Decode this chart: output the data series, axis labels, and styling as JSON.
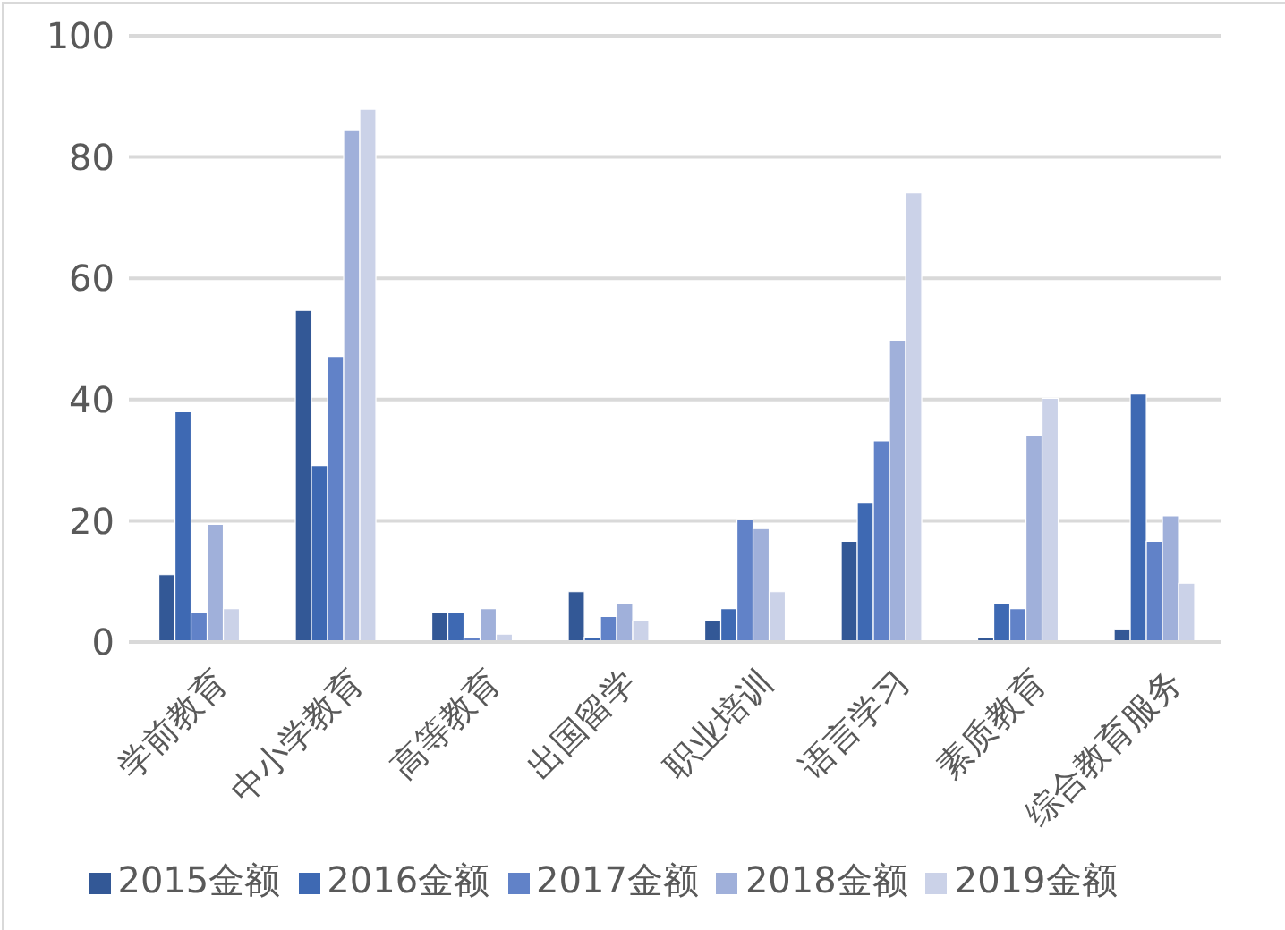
{
  "chart_data": {
    "type": "bar",
    "categories": [
      "学前教育",
      "中小学教育",
      "高等教育",
      "出国留学",
      "职业培训",
      "语言学习",
      "素质教育",
      "综合教育服务"
    ],
    "series": [
      {
        "name": "2015金额",
        "color": "#335896",
        "values": [
          11.1,
          54.7,
          4.8,
          8.3,
          3.5,
          16.6,
          0.8,
          2.1
        ]
      },
      {
        "name": "2016金额",
        "color": "#3e69b3",
        "values": [
          38,
          29.1,
          4.8,
          0.8,
          5.5,
          22.9,
          6.3,
          40.9
        ]
      },
      {
        "name": "2017金额",
        "color": "#6182c8",
        "values": [
          4.8,
          47.1,
          0.8,
          4.2,
          20.2,
          33.2,
          5.5,
          16.6
        ]
      },
      {
        "name": "2018金额",
        "color": "#a0b0da",
        "values": [
          19.4,
          84.5,
          5.5,
          6.3,
          18.7,
          49.8,
          34,
          20.8
        ]
      },
      {
        "name": "2019金额",
        "color": "#cbd2e8",
        "values": [
          5.5,
          87.9,
          1.3,
          3.5,
          8.3,
          74.1,
          40.2,
          9.7
        ]
      }
    ],
    "ylim": [
      0,
      100
    ],
    "yticks": [
      0,
      20,
      40,
      60,
      80,
      100
    ],
    "grid": "y",
    "legend": "bottom"
  }
}
